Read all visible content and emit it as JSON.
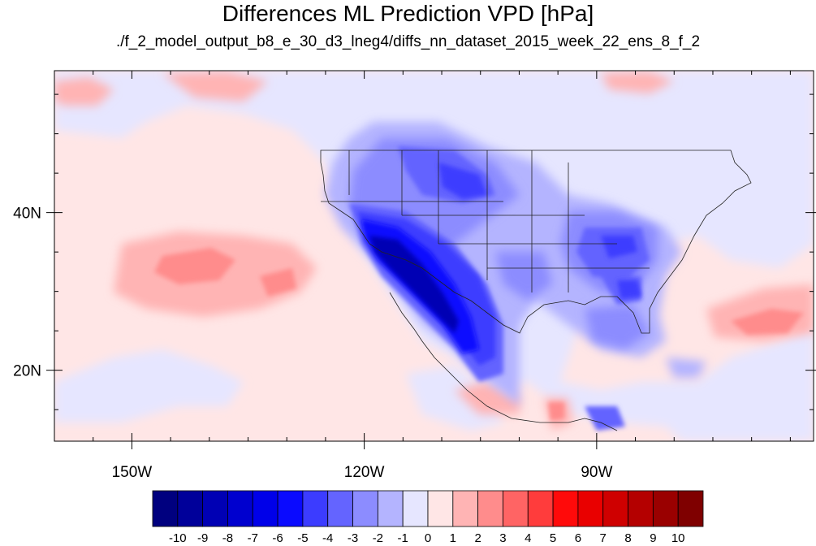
{
  "title": "Differences ML Prediction VPD [hPa]",
  "subtitle": "./f_2_model_output_b8_e_30_d3_lneg4/diffs_nn_dataset_2015_week_22_ens_8_f_2",
  "map": {
    "lon_range": [
      -160,
      -62
    ],
    "lat_range": [
      11,
      58
    ],
    "lon_ticks": [
      {
        "lon": -150,
        "label": "150W"
      },
      {
        "lon": -120,
        "label": "120W"
      },
      {
        "lon": -90,
        "label": "90W"
      }
    ],
    "lat_ticks": [
      {
        "lat": 40,
        "label": "40N"
      },
      {
        "lat": 20,
        "label": "20N"
      }
    ],
    "field_description": "VPD difference field over North America and Pacific"
  },
  "colorbar": {
    "labels": [
      "-10",
      "-9",
      "-8",
      "-7",
      "-6",
      "-5",
      "-4",
      "-3",
      "-2",
      "-1",
      "0",
      "1",
      "2",
      "3",
      "4",
      "5",
      "6",
      "7",
      "8",
      "9",
      "10"
    ],
    "colors": [
      "#00007f",
      "#00009a",
      "#0000b4",
      "#0000cf",
      "#0000e9",
      "#0a0aff",
      "#3c3cff",
      "#6464ff",
      "#8c8cff",
      "#b4b4ff",
      "#e6e6ff",
      "#ffe6e6",
      "#ffb4b4",
      "#ff8c8c",
      "#ff6464",
      "#ff3c3c",
      "#ff0a0a",
      "#e90000",
      "#cf0000",
      "#b40000",
      "#9a0000",
      "#7f0000"
    ]
  }
}
